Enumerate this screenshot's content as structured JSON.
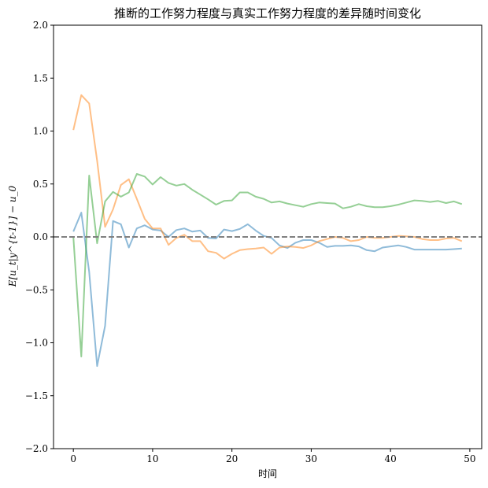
{
  "chart_data": {
    "type": "line",
    "title": "推断的工作努力程度与真实工作努力程度的差异随时间变化",
    "xlabel": "时间",
    "ylabel": "E[u_t|y^{t-1}] − u_0",
    "xlim": [
      -2.5,
      51.5
    ],
    "ylim": [
      -2.0,
      2.0
    ],
    "xticks": [
      0,
      10,
      20,
      30,
      40,
      50
    ],
    "yticks": [
      -2.0,
      -1.5,
      -1.0,
      -0.5,
      0.0,
      0.5,
      1.0,
      1.5,
      2.0
    ],
    "xtick_labels": [
      "0",
      "10",
      "20",
      "30",
      "40",
      "50"
    ],
    "ytick_labels": [
      "−2.0",
      "−1.5",
      "−1.0",
      "−0.5",
      "0.0",
      "0.5",
      "1.0",
      "1.5",
      "2.0"
    ],
    "grid": false,
    "legend": null,
    "reference_line": {
      "y": 0.0,
      "style": "dashed",
      "color": "#808080"
    },
    "x": [
      0,
      1,
      2,
      3,
      4,
      5,
      6,
      7,
      8,
      9,
      10,
      11,
      12,
      13,
      14,
      15,
      16,
      17,
      18,
      19,
      20,
      21,
      22,
      23,
      24,
      25,
      26,
      27,
      28,
      29,
      30,
      31,
      32,
      33,
      34,
      35,
      36,
      37,
      38,
      39,
      40,
      41,
      42,
      43,
      44,
      45,
      46,
      47,
      48,
      49
    ],
    "series": [
      {
        "name": "series-1",
        "color": "#1f77b4",
        "alpha": 0.5,
        "values": [
          0.05,
          0.23,
          -0.33,
          -1.22,
          -0.84,
          0.15,
          0.12,
          -0.1,
          0.08,
          0.11,
          0.07,
          0.06,
          0.0,
          0.065,
          0.08,
          0.05,
          0.06,
          -0.01,
          -0.015,
          0.07,
          0.055,
          0.075,
          0.12,
          0.06,
          0.01,
          -0.01,
          -0.08,
          -0.105,
          -0.055,
          -0.03,
          -0.03,
          -0.055,
          -0.095,
          -0.085,
          -0.085,
          -0.08,
          -0.09,
          -0.125,
          -0.135,
          -0.1,
          -0.09,
          -0.08,
          -0.095,
          -0.12,
          -0.12,
          -0.12,
          -0.12,
          -0.12,
          -0.115,
          -0.11
        ]
      },
      {
        "name": "series-2",
        "color": "#ff7f0e",
        "alpha": 0.5,
        "values": [
          1.01,
          1.34,
          1.26,
          0.72,
          0.095,
          0.26,
          0.49,
          0.545,
          0.36,
          0.17,
          0.08,
          0.08,
          -0.075,
          -0.01,
          0.02,
          -0.04,
          -0.04,
          -0.135,
          -0.15,
          -0.205,
          -0.16,
          -0.125,
          -0.115,
          -0.11,
          -0.1,
          -0.16,
          -0.1,
          -0.09,
          -0.095,
          -0.105,
          -0.08,
          -0.04,
          -0.02,
          0.0,
          -0.01,
          -0.04,
          -0.03,
          0.0,
          -0.01,
          -0.01,
          0.0,
          0.01,
          0.005,
          0.0,
          -0.02,
          -0.03,
          -0.03,
          -0.015,
          -0.01,
          -0.04
        ]
      },
      {
        "name": "series-3",
        "color": "#2ca02c",
        "alpha": 0.5,
        "values": [
          0.0,
          -1.13,
          0.58,
          -0.06,
          0.335,
          0.425,
          0.38,
          0.42,
          0.595,
          0.57,
          0.495,
          0.565,
          0.51,
          0.485,
          0.5,
          0.445,
          0.4,
          0.355,
          0.305,
          0.34,
          0.345,
          0.42,
          0.42,
          0.38,
          0.36,
          0.325,
          0.335,
          0.315,
          0.3,
          0.285,
          0.31,
          0.325,
          0.32,
          0.315,
          0.27,
          0.285,
          0.31,
          0.29,
          0.28,
          0.28,
          0.29,
          0.305,
          0.325,
          0.345,
          0.34,
          0.33,
          0.34,
          0.32,
          0.335,
          0.31
        ]
      }
    ]
  }
}
